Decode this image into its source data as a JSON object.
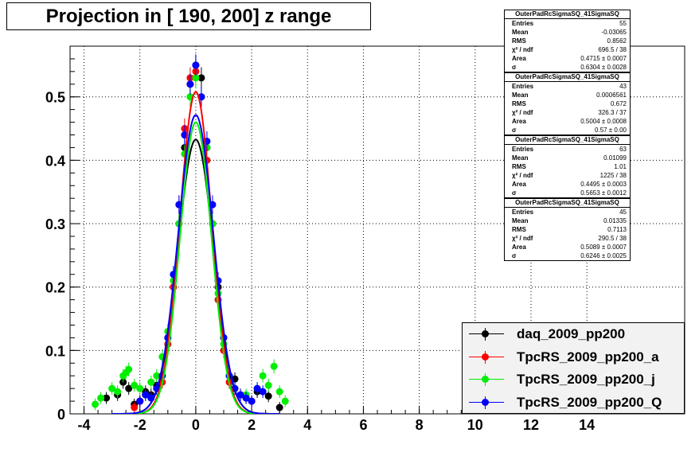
{
  "chart_data": {
    "type": "scatter",
    "title": "Projection in [ 190, 200] z range",
    "xlim": [
      -4.5,
      17.5
    ],
    "ylim": [
      0,
      0.58
    ],
    "x_ticks": [
      "-4",
      "-2",
      "0",
      "2",
      "4",
      "6",
      "8",
      "10",
      "12",
      "14"
    ],
    "y_ticks": [
      "0",
      "0.1",
      "0.2",
      "0.3",
      "0.4",
      "0.5"
    ],
    "grid": true,
    "legend_position": "bottom-right",
    "series": [
      {
        "name": "daq_2009_pp200",
        "color": "#000000",
        "fit_sigma": 0.6304,
        "fit_area": 0.4715,
        "x": [
          -3.2,
          -2.8,
          -2.6,
          -2.4,
          -2.2,
          -2.0,
          -1.8,
          -1.6,
          -1.4,
          -1.2,
          -1.0,
          -0.8,
          -0.6,
          -0.4,
          -0.2,
          0.0,
          0.2,
          0.4,
          0.6,
          0.8,
          1.0,
          1.2,
          1.4,
          1.6,
          1.8,
          2.0,
          2.2,
          2.6,
          3.0
        ],
        "y": [
          0.025,
          0.03,
          0.05,
          0.04,
          0.015,
          0.02,
          0.035,
          0.03,
          0.045,
          0.06,
          0.12,
          0.2,
          0.3,
          0.42,
          0.52,
          0.55,
          0.53,
          0.42,
          0.3,
          0.2,
          0.12,
          0.06,
          0.055,
          0.03,
          0.025,
          0.02,
          0.035,
          0.028,
          0.01
        ]
      },
      {
        "name": "TpcRS_2009_pp200_a",
        "color": "#ff0000",
        "fit_sigma": 0.57,
        "fit_area": 0.5004,
        "x": [
          -2.2,
          -2.0,
          -1.6,
          -1.2,
          -1.0,
          -0.8,
          -0.6,
          -0.4,
          -0.2,
          0.0,
          0.2,
          0.4,
          0.6,
          0.8,
          1.0,
          1.2,
          1.6,
          2.0
        ],
        "y": [
          0.01,
          0.02,
          0.025,
          0.05,
          0.11,
          0.2,
          0.33,
          0.45,
          0.53,
          0.54,
          0.5,
          0.4,
          0.3,
          0.18,
          0.1,
          0.05,
          0.03,
          0.02
        ]
      },
      {
        "name": "TpcRS_2009_pp200_j",
        "color": "#00ee00",
        "fit_sigma": 0.5653,
        "fit_area": 0.4495,
        "x": [
          -3.6,
          -3.4,
          -3.0,
          -2.8,
          -2.6,
          -2.5,
          -2.4,
          -2.2,
          -2.0,
          -1.8,
          -1.6,
          -1.4,
          -1.2,
          -1.0,
          -0.8,
          -0.6,
          -0.4,
          -0.2,
          0.0,
          0.2,
          0.4,
          0.6,
          0.8,
          1.0,
          1.2,
          1.4,
          1.8,
          2.2,
          2.4,
          2.6,
          2.8,
          3.0,
          3.2
        ],
        "y": [
          0.015,
          0.025,
          0.04,
          0.035,
          0.06,
          0.065,
          0.07,
          0.045,
          0.04,
          0.03,
          0.05,
          0.06,
          0.09,
          0.13,
          0.21,
          0.3,
          0.41,
          0.5,
          0.53,
          0.5,
          0.42,
          0.3,
          0.19,
          0.11,
          0.06,
          0.04,
          0.03,
          0.04,
          0.06,
          0.045,
          0.075,
          0.035,
          0.02
        ]
      },
      {
        "name": "TpcRS_2009_pp200_Q",
        "color": "#0000ff",
        "fit_sigma": 0.6246,
        "fit_area": 0.5089,
        "x": [
          -2.0,
          -1.8,
          -1.6,
          -1.4,
          -1.2,
          -1.0,
          -0.8,
          -0.6,
          -0.4,
          -0.2,
          0.0,
          0.2,
          0.4,
          0.6,
          0.8,
          1.0,
          1.2,
          1.4,
          1.6,
          1.8,
          2.0,
          2.2,
          2.4
        ],
        "y": [
          0.02,
          0.03,
          0.025,
          0.04,
          0.06,
          0.12,
          0.22,
          0.33,
          0.44,
          0.52,
          0.55,
          0.5,
          0.43,
          0.33,
          0.21,
          0.12,
          0.06,
          0.04,
          0.03,
          0.025,
          0.02,
          0.04,
          0.035
        ]
      }
    ]
  },
  "stats": [
    {
      "title": "OuterPadRcSigmaSQ_41SigmaSQ",
      "rows": [
        {
          "k": "Entries",
          "v": "55"
        },
        {
          "k": "Mean",
          "v": "-0.03065"
        },
        {
          "k": "RMS",
          "v": "0.8562"
        },
        {
          "k": "χ² / ndf",
          "v": "696.5 / 38"
        },
        {
          "k": "Area",
          "v": "0.4715 ± 0.0007"
        },
        {
          "k": "σ",
          "v": "0.6304 ± 0.0028"
        }
      ]
    },
    {
      "title": "OuterPadRcSigmaSQ_41SigmaSQ",
      "rows": [
        {
          "k": "Entries",
          "v": "43"
        },
        {
          "k": "Mean",
          "v": "0.0006561"
        },
        {
          "k": "RMS",
          "v": "0.672"
        },
        {
          "k": "χ² / ndf",
          "v": "326.3 / 37"
        },
        {
          "k": "Area",
          "v": "0.5004 ± 0.0008"
        },
        {
          "k": "σ",
          "v": "0.57 ± 0.00"
        }
      ]
    },
    {
      "title": "OuterPadRcSigmaSQ_41SigmaSQ",
      "rows": [
        {
          "k": "Entries",
          "v": "63"
        },
        {
          "k": "Mean",
          "v": "0.01099"
        },
        {
          "k": "RMS",
          "v": "1.01"
        },
        {
          "k": "χ² / ndf",
          "v": "1225 / 38"
        },
        {
          "k": "Area",
          "v": "0.4495 ± 0.0003"
        },
        {
          "k": "σ",
          "v": "0.5653 ± 0.0012"
        }
      ]
    },
    {
      "title": "OuterPadRcSigmaSQ_41SigmaSQ",
      "rows": [
        {
          "k": "Entries",
          "v": "45"
        },
        {
          "k": "Mean",
          "v": "0.01335"
        },
        {
          "k": "RMS",
          "v": "0.7113"
        },
        {
          "k": "χ² / ndf",
          "v": "290.5 / 38"
        },
        {
          "k": "Area",
          "v": "0.5089 ± 0.0007"
        },
        {
          "k": "σ",
          "v": "0.6246 ± 0.0025"
        }
      ]
    }
  ]
}
